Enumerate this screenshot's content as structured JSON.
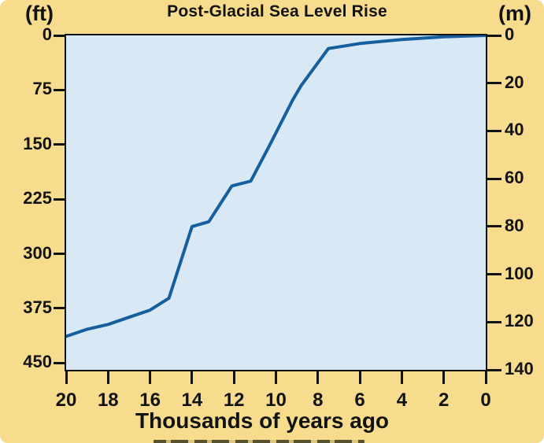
{
  "title": "Post-Glacial Sea Level Rise",
  "left_axis": {
    "unit": "(ft)",
    "ticks": [
      0,
      75,
      150,
      225,
      300,
      375,
      450
    ]
  },
  "right_axis": {
    "unit": "(m)",
    "ticks": [
      0,
      20,
      40,
      60,
      80,
      100,
      120,
      140
    ]
  },
  "x_axis": {
    "label": "Thousands of years ago",
    "ticks": [
      20,
      18,
      16,
      14,
      12,
      10,
      8,
      6,
      4,
      2,
      0
    ]
  },
  "colors": {
    "background": "#F6DC8C",
    "plot_background": "#D9E8F5",
    "line": "#155F9E",
    "text_and_frame": "#121212"
  },
  "chart_data": {
    "type": "line",
    "title": "Post-Glacial Sea Level Rise",
    "xlabel": "Thousands of years ago",
    "x_range": [
      20,
      0
    ],
    "x_direction": "reversed (20 thousand years ago at left, present at right)",
    "y_left_unit": "ft",
    "y_left_ticks": [
      0,
      75,
      150,
      225,
      300,
      375,
      450
    ],
    "y_right_unit": "m",
    "y_right_ticks": [
      0,
      20,
      40,
      60,
      80,
      100,
      120,
      140
    ],
    "y_range_m": [
      0,
      140
    ],
    "y_direction": "depth below present sea level, increasing downward",
    "grid": false,
    "legend": false,
    "series": [
      {
        "name": "sea-level-depth",
        "x_kyr_ago": [
          20,
          19,
          18,
          17,
          16,
          15.1,
          14,
          13.2,
          12.1,
          11.2,
          10.3,
          9.2,
          8.8,
          7.5,
          6,
          4,
          2,
          0
        ],
        "depth_m": [
          126,
          123,
          121,
          118,
          115,
          110,
          80,
          78,
          63,
          61,
          46,
          27,
          21,
          5.5,
          3.4,
          1.7,
          0.6,
          0
        ]
      }
    ]
  }
}
